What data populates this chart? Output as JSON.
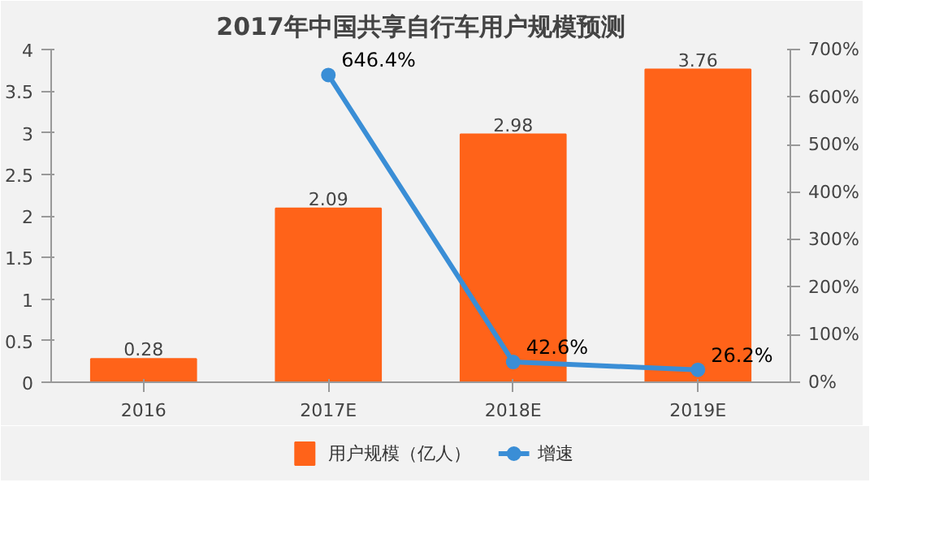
{
  "chart_data": {
    "type": "bar",
    "title": "2017年中国共享自行车用户规模预测",
    "categories": [
      "2016",
      "2017E",
      "2018E",
      "2019E"
    ],
    "series": [
      {
        "name": "用户规模（亿人）",
        "color": "#ff6319",
        "values": [
          0.28,
          2.09,
          2.98,
          3.76
        ],
        "value_labels": [
          "0.28",
          "2.09",
          "2.98",
          "3.76"
        ]
      },
      {
        "name": "增速",
        "type": "line",
        "axis": "y2",
        "color": "#3a8ed6",
        "values": [
          null,
          646.4,
          42.6,
          26.2
        ],
        "value_labels": [
          null,
          "646.4%",
          "42.6%",
          "26.2%"
        ]
      }
    ],
    "ylim": [
      0,
      4
    ],
    "yticks": [
      0,
      0.5,
      1,
      1.5,
      2,
      2.5,
      3,
      3.5,
      4
    ],
    "y2lim": [
      0,
      700
    ],
    "y2ticks": [
      {
        "value": 0,
        "label": "0%"
      },
      {
        "value": 100,
        "label": "100%"
      },
      {
        "value": 200,
        "label": "200%"
      },
      {
        "value": 300,
        "label": "300%"
      },
      {
        "value": 400,
        "label": "400%"
      },
      {
        "value": 500,
        "label": "500%"
      },
      {
        "value": 600,
        "label": "600%"
      },
      {
        "value": 700,
        "label": "700%"
      }
    ],
    "grid": false,
    "legend": "bottom",
    "marker": "circle",
    "line_style": "solid"
  }
}
